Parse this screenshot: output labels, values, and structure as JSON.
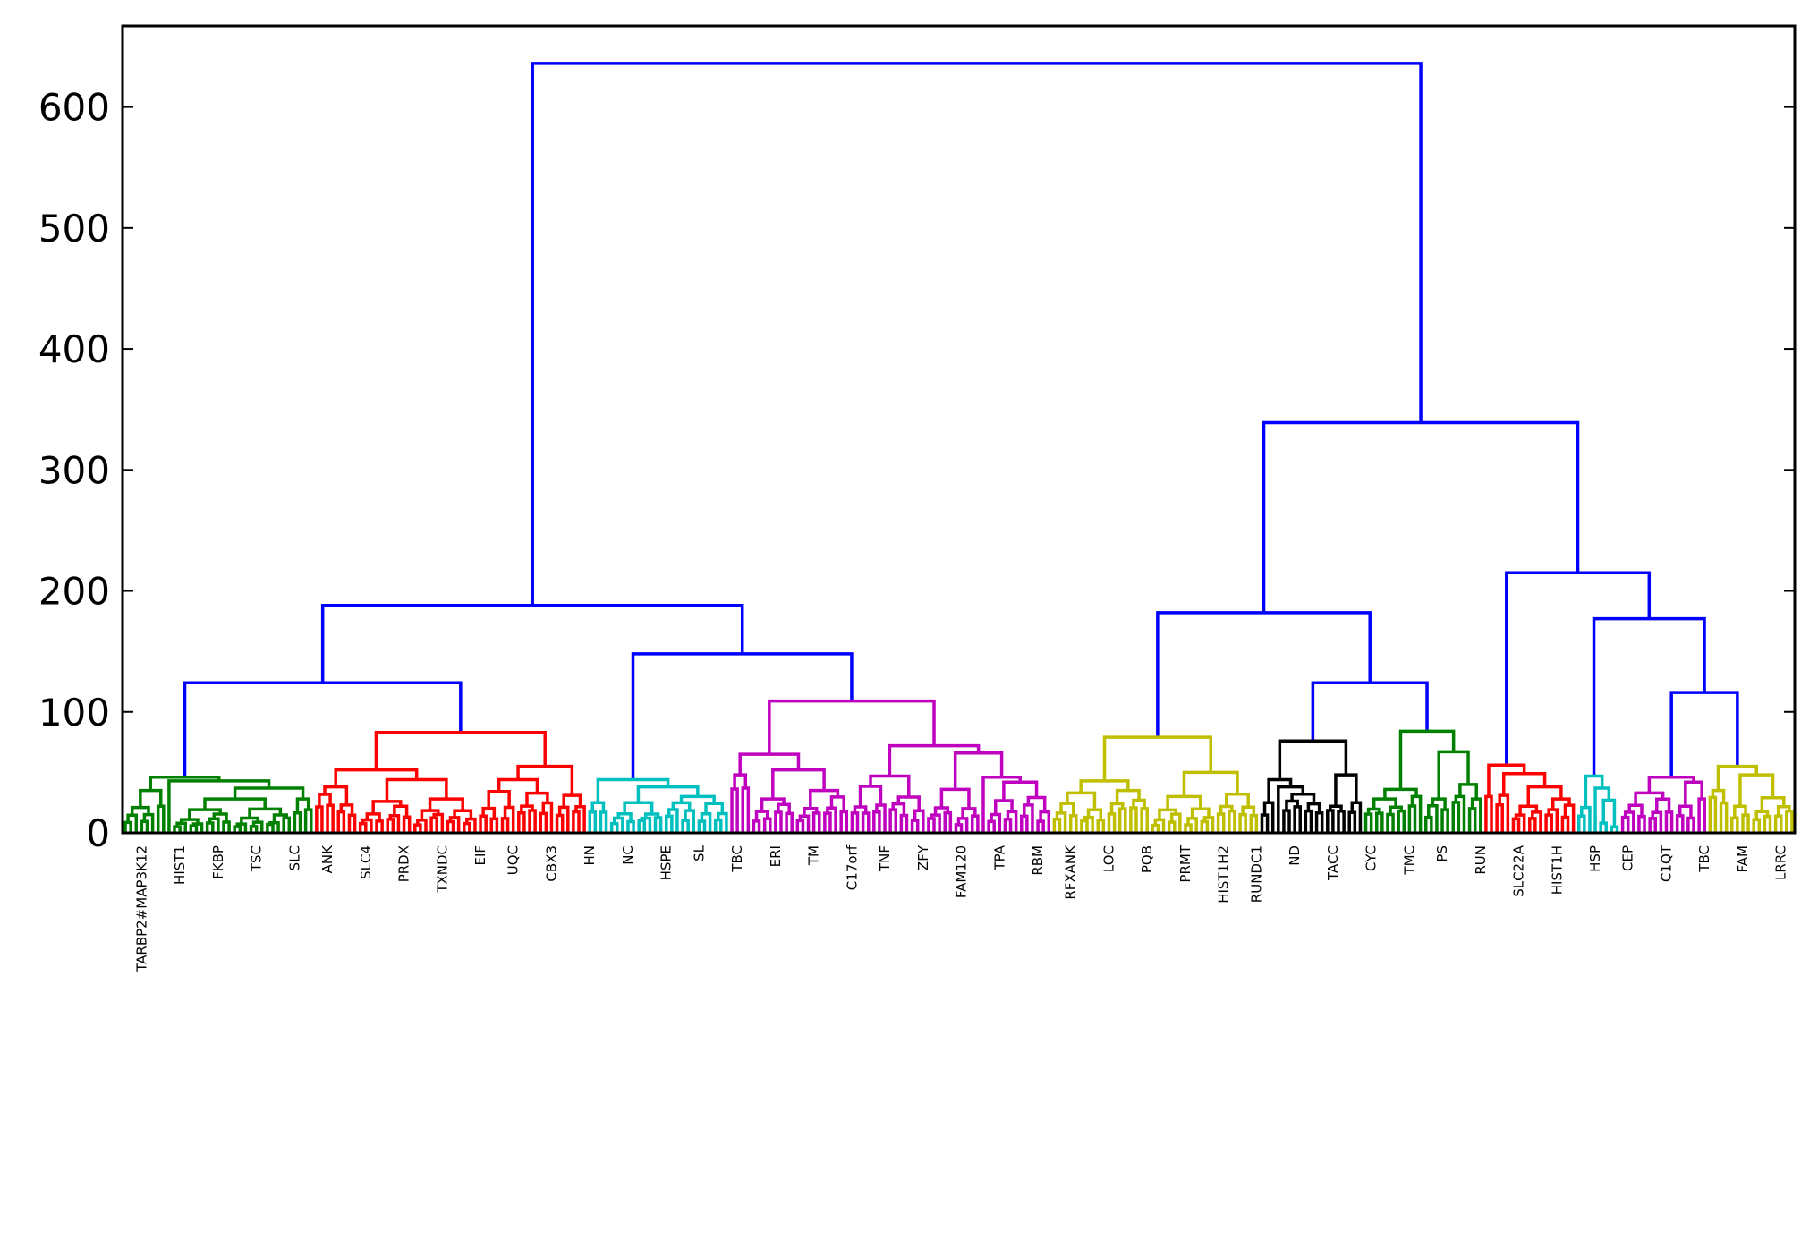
{
  "chart_data": {
    "type": "dendrogram",
    "title": "",
    "xlabel": "",
    "ylabel": "",
    "ylim": [
      0,
      667
    ],
    "yticks": [
      0,
      100,
      200,
      300,
      400,
      500,
      600
    ],
    "ytick_labels": [
      "0",
      "100",
      "200",
      "300",
      "400",
      "500",
      "600"
    ],
    "grid": false,
    "above_threshold_color": "#0000ff",
    "colors": {
      "blue": "#0000ff",
      "green": "#008000",
      "red": "#ff0000",
      "cyan": "#00bfbf",
      "magenta": "#bf00bf",
      "yellow": "#bfbf00",
      "black": "#000000"
    },
    "leaf_labels_legible": [
      "TARBP2#MAP3K12",
      "HIST1",
      "FKBP",
      "TSC",
      "SLC",
      "ANK",
      "SLC4",
      "PRDX",
      "TXNDC",
      "EIF",
      "UQC",
      "CBX3",
      "HN",
      "NC",
      "HSPE",
      "SL",
      "TBC",
      "ERI",
      "TM",
      "C17orf",
      "TNF",
      "ZFY",
      "FAM120",
      "TPA",
      "RBM",
      "RFXANK",
      "LOC",
      "PQB",
      "PRMT",
      "HIST1H2",
      "RUNDC1",
      "ND",
      "TACC",
      "CYC",
      "TMC",
      "PS",
      "RUN",
      "SLC22A",
      "HIST1H",
      "HSP",
      "CEP",
      "C1QT",
      "TBC",
      "FAM",
      "LRRC"
    ],
    "tree": {
      "h": 636,
      "c": [
        {
          "h": 188,
          "c": [
            {
              "h": 124,
              "c": [
                {
                  "color": "green",
                  "h": 46,
                  "c": [
                    {
                      "h": 35,
                      "c": [
                        {
                          "n": 6,
                          "h": 21
                        },
                        {
                          "n": 2,
                          "h": 22
                        }
                      ]
                    },
                    {
                      "h": 43,
                      "c": [
                        {
                          "n": 1
                        },
                        {
                          "h": 37,
                          "c": [
                            {
                              "n": 22,
                              "h": 28
                            },
                            {
                              "n": 4,
                              "h": 28
                            }
                          ]
                        }
                      ]
                    }
                  ]
                },
                {
                  "color": "red",
                  "h": 83,
                  "c": [
                    {
                      "h": 52,
                      "c": [
                        {
                          "n": 8,
                          "h": 38
                        },
                        {
                          "h": 44,
                          "c": [
                            {
                              "n": 10,
                              "h": 26
                            },
                            {
                              "n": 12,
                              "h": 28
                            }
                          ]
                        }
                      ]
                    },
                    {
                      "h": 55,
                      "c": [
                        {
                          "n": 14,
                          "h": 44
                        },
                        {
                          "n": 6,
                          "h": 31
                        }
                      ]
                    }
                  ]
                }
              ]
            },
            {
              "h": 148,
              "c": [
                {
                  "color": "cyan",
                  "h": 44,
                  "c": [
                    {
                      "n": 4,
                      "h": 25
                    },
                    {
                      "h": 38,
                      "c": [
                        {
                          "n": 10,
                          "h": 25
                        },
                        {
                          "n": 12,
                          "h": 30
                        }
                      ]
                    }
                  ]
                },
                {
                  "color": "magenta",
                  "h": 109,
                  "c": [
                    {
                      "h": 65,
                      "c": [
                        {
                          "n": 4,
                          "h": 48
                        },
                        {
                          "h": 52,
                          "c": [
                            {
                              "n": 8,
                              "h": 28
                            },
                            {
                              "n": 10,
                              "h": 35
                            }
                          ]
                        }
                      ]
                    },
                    {
                      "h": 72,
                      "c": [
                        {
                          "n": 14,
                          "h": 47
                        },
                        {
                          "h": 66,
                          "c": [
                            {
                              "n": 10,
                              "h": 36
                            },
                            {
                              "h": 46,
                              "c": [
                                {
                                  "n": 1
                                },
                                {
                                  "n": 12,
                                  "h": 42
                                }
                              ]
                            }
                          ]
                        }
                      ]
                    }
                  ]
                }
              ]
            }
          ]
        },
        {
          "h": 339,
          "c": [
            {
              "h": 182,
              "c": [
                {
                  "color": "yellow",
                  "h": 79,
                  "c": [
                    {
                      "h": 43,
                      "c": [
                        {
                          "n": 10,
                          "h": 33
                        },
                        {
                          "n": 8,
                          "h": 35
                        }
                      ]
                    },
                    {
                      "h": 50,
                      "c": [
                        {
                          "n": 12,
                          "h": 30
                        },
                        {
                          "n": 8,
                          "h": 32
                        }
                      ]
                    }
                  ]
                },
                {
                  "h": 124,
                  "c": [
                    {
                      "color": "black",
                      "h": 76,
                      "c": [
                        {
                          "h": 44,
                          "c": [
                            {
                              "n": 3,
                              "h": 25
                            },
                            {
                              "h": 38,
                              "c": [
                                {
                                  "n": 1
                                },
                                {
                                  "n": 8,
                                  "h": 32
                                }
                              ]
                            }
                          ]
                        },
                        {
                          "h": 48,
                          "c": [
                            {
                              "n": 4,
                              "h": 22
                            },
                            {
                              "n": 3,
                              "h": 25
                            }
                          ]
                        }
                      ]
                    },
                    {
                      "color": "green",
                      "h": 84,
                      "c": [
                        {
                          "h": 36,
                          "c": [
                            {
                              "n": 8,
                              "h": 28
                            },
                            {
                              "n": 3,
                              "h": 30
                            }
                          ]
                        },
                        {
                          "h": 67,
                          "c": [
                            {
                              "n": 5,
                              "h": 28
                            },
                            {
                              "h": 40,
                              "c": [
                                {
                                  "n": 3,
                                  "h": 30
                                },
                                {
                                  "n": 3,
                                  "h": 28
                                }
                              ]
                            }
                          ]
                        }
                      ]
                    }
                  ]
                }
              ]
            },
            {
              "h": 215,
              "c": [
                {
                  "color": "red",
                  "h": 56,
                  "c": [
                    {
                      "n": 2,
                      "h": 30
                    },
                    {
                      "h": 49,
                      "c": [
                        {
                          "n": 3,
                          "h": 31
                        },
                        {
                          "h": 38,
                          "c": [
                            {
                              "n": 6,
                              "h": 22
                            },
                            {
                              "n": 6,
                              "h": 28
                            }
                          ]
                        }
                      ]
                    }
                  ]
                },
                {
                  "h": 177,
                  "c": [
                    {
                      "color": "cyan",
                      "h": 47,
                      "c": [
                        {
                          "n": 3,
                          "h": 21
                        },
                        {
                          "h": 37,
                          "c": [
                            {
                              "n": 1
                            },
                            {
                              "h": 27,
                              "c": [
                                {
                                  "n": 2,
                                  "h": 8
                                },
                                {
                                  "n": 2,
                                  "h": 5
                                }
                              ]
                            }
                          ]
                        }
                      ]
                    },
                    {
                      "h": 116,
                      "c": [
                        {
                          "color": "magenta",
                          "h": 46,
                          "c": [
                            {
                              "n": 10,
                              "h": 33
                            },
                            {
                              "h": 42,
                              "c": [
                                {
                                  "n": 4,
                                  "h": 22
                                },
                                {
                                  "n": 2,
                                  "h": 28
                                }
                              ]
                            }
                          ]
                        },
                        {
                          "color": "yellow",
                          "h": 55,
                          "c": [
                            {
                              "n": 4,
                              "h": 35
                            },
                            {
                              "h": 48,
                              "c": [
                                {
                                  "n": 4,
                                  "h": 22
                                },
                                {
                                  "n": 8,
                                  "h": 29
                                }
                              ]
                            }
                          ]
                        }
                      ]
                    }
                  ]
                }
              ]
            }
          ]
        }
      ]
    }
  }
}
